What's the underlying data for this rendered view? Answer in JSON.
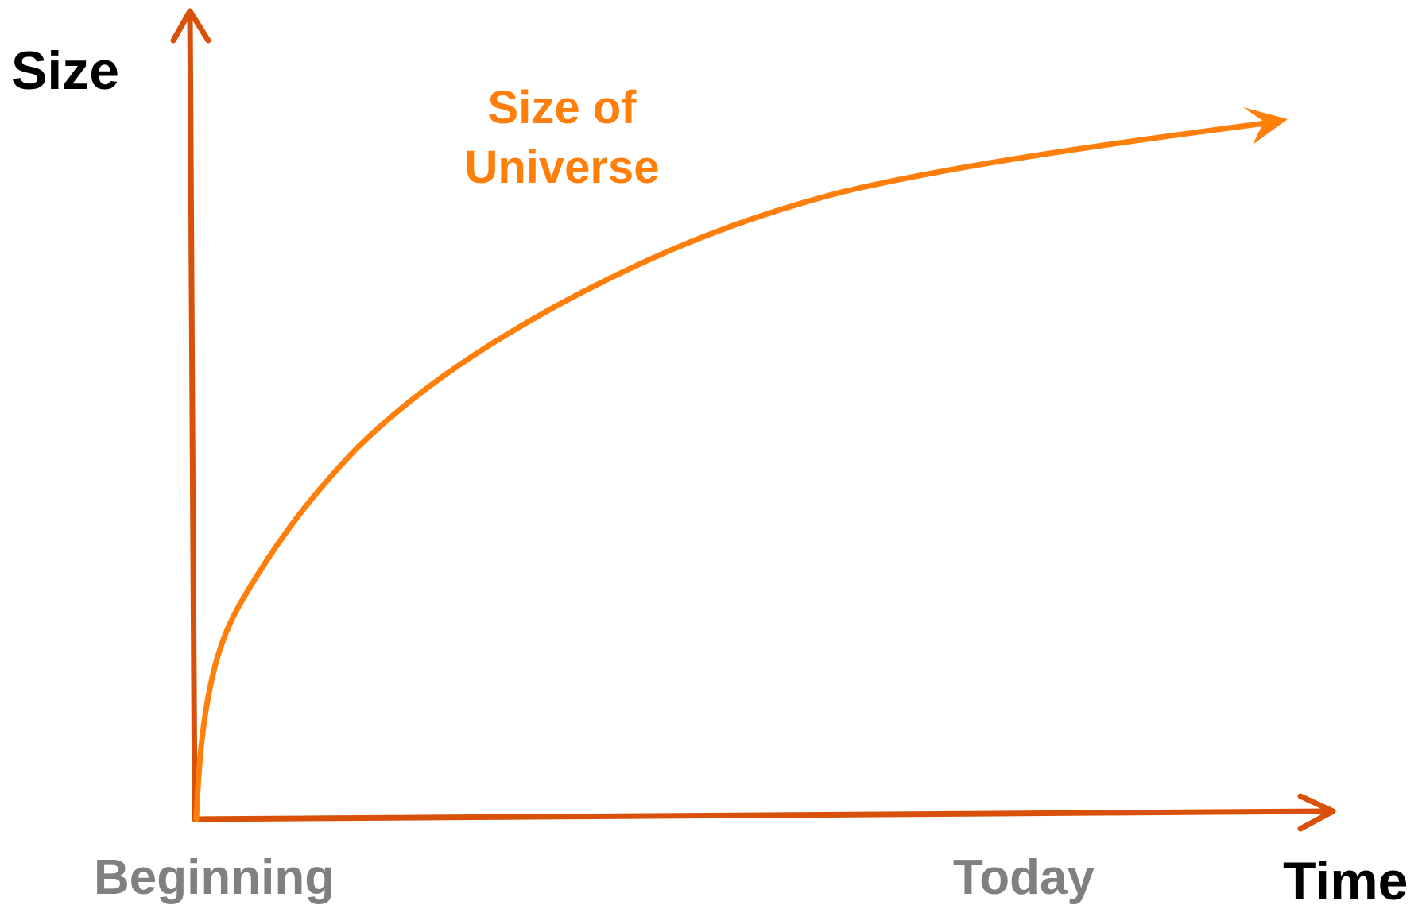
{
  "axes": {
    "y_label": "Size",
    "x_label": "Time",
    "x_start_label": "Beginning",
    "x_end_label": "Today"
  },
  "curve": {
    "label_lines": [
      "Size of",
      "Universe"
    ]
  }
}
